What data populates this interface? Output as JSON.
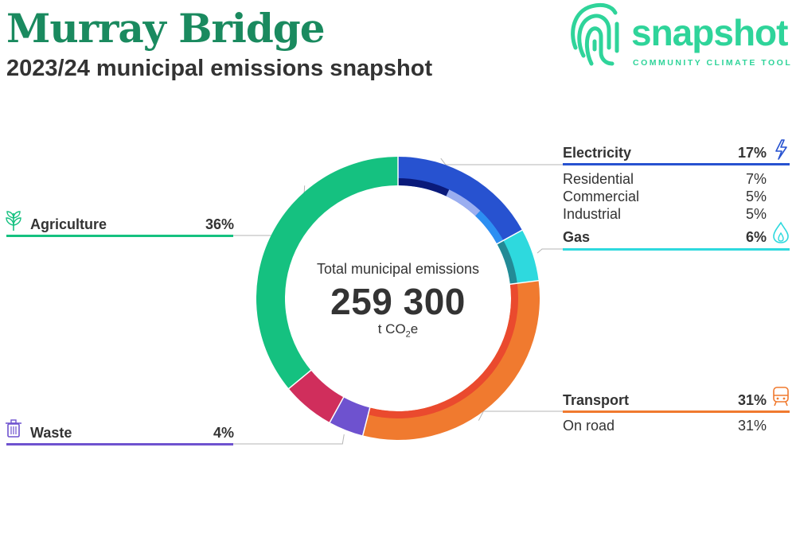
{
  "header": {
    "title": "Murray Bridge",
    "subtitle": "2023/24 municipal emissions snapshot"
  },
  "logo": {
    "word": "snapshot",
    "tagline": "COMMUNITY CLIMATE TOOL",
    "color": "#2fd49a"
  },
  "center": {
    "label": "Total municipal emissions",
    "value": "259 300",
    "unit_prefix": "t CO",
    "unit_sub": "2",
    "unit_suffix": "e"
  },
  "chart_data": {
    "type": "donut",
    "total": 259300,
    "unit": "t CO2e",
    "categories": [
      {
        "name": "Electricity",
        "pct": 17,
        "color": "#2752d0",
        "icon": "lightning-icon",
        "sub": [
          {
            "name": "Residential",
            "pct": 7
          },
          {
            "name": "Commercial",
            "pct": 5
          },
          {
            "name": "Industrial",
            "pct": 5
          }
        ]
      },
      {
        "name": "Gas",
        "pct": 6,
        "color": "#2ed9de",
        "icon": "flame-icon",
        "sub": []
      },
      {
        "name": "Transport",
        "pct": 31,
        "color": "#f07a2f",
        "icon": "train-icon",
        "sub": [
          {
            "name": "On road",
            "pct": 31
          }
        ]
      },
      {
        "name": "Waste",
        "pct": 4,
        "color": "#6e52cf",
        "icon": "trash-icon",
        "sub": []
      },
      {
        "name": "Agriculture",
        "pct": 36,
        "color": "#15c180",
        "icon": "plant-icon",
        "sub": []
      }
    ],
    "unlabeled_segments": [
      {
        "color": "#d02e5c"
      }
    ]
  },
  "labels": {
    "electricity": {
      "name": "Electricity",
      "pct": "17%"
    },
    "residential": {
      "name": "Residential",
      "pct": "7%"
    },
    "commercial": {
      "name": "Commercial",
      "pct": "5%"
    },
    "industrial": {
      "name": "Industrial",
      "pct": "5%"
    },
    "gas": {
      "name": "Gas",
      "pct": "6%"
    },
    "transport": {
      "name": "Transport",
      "pct": "31%"
    },
    "onroad": {
      "name": "On road",
      "pct": "31%"
    },
    "agriculture": {
      "name": "Agriculture",
      "pct": "36%"
    },
    "waste": {
      "name": "Waste",
      "pct": "4%"
    }
  }
}
